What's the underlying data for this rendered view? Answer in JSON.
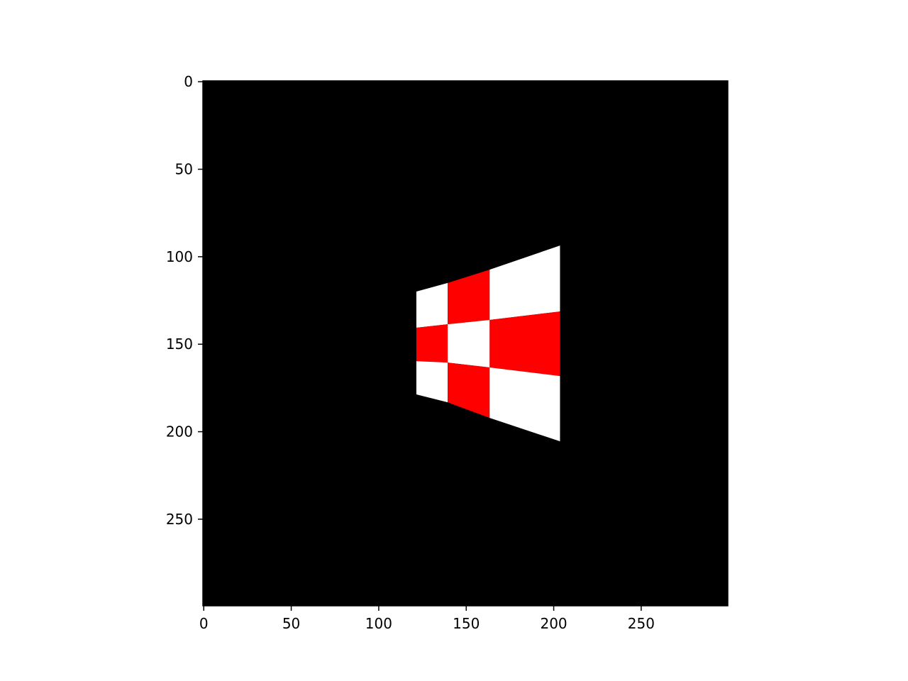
{
  "chart_data": {
    "type": "image",
    "xlim": [
      -0.5,
      299.5
    ],
    "ylim": [
      299.5,
      -0.5
    ],
    "xticks": [
      0,
      50,
      100,
      150,
      200,
      250
    ],
    "yticks": [
      0,
      50,
      100,
      150,
      200,
      250
    ],
    "background": "#000000",
    "checker": {
      "columns": [
        121.5,
        139.4,
        163.4,
        203.6
      ],
      "rows": [
        [
          119.9,
          140.6,
          159.7,
          178.7
        ],
        [
          115.0,
          138.6,
          160.5,
          183.2
        ],
        [
          107.4,
          136.1,
          163.3,
          192.1
        ],
        [
          93.6,
          131.3,
          168.2,
          205.5
        ]
      ],
      "colors": [
        "#ffffff",
        "#ff0000"
      ]
    }
  }
}
